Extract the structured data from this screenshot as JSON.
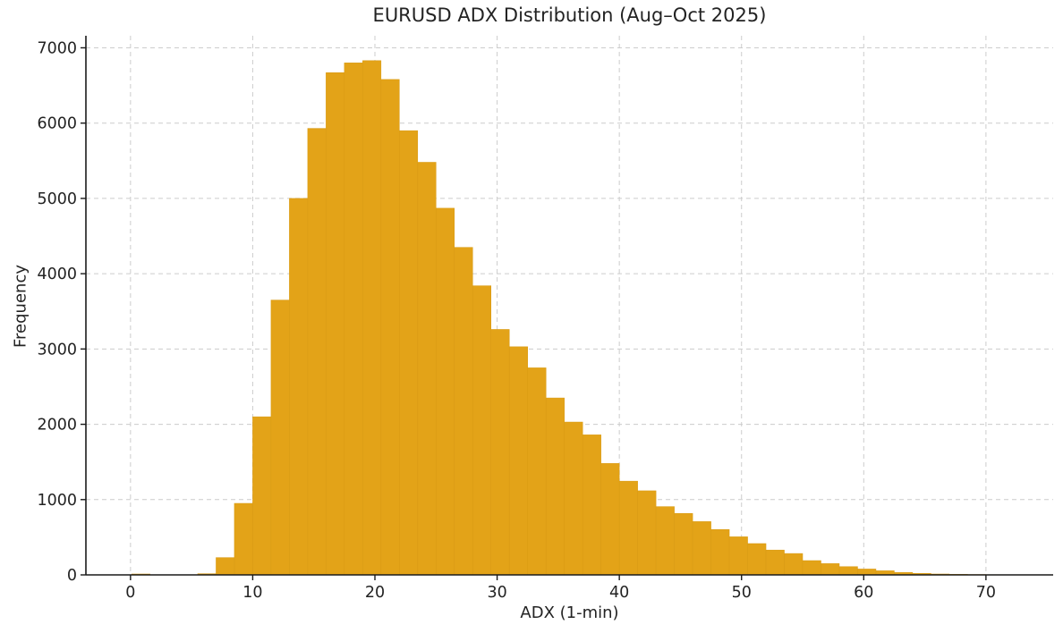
{
  "chart_data": {
    "type": "bar",
    "subtype": "histogram",
    "title": "EURUSD ADX Distribution (Aug–Oct 2025)",
    "xlabel": "ADX (1-min)",
    "ylabel": "Frequency",
    "xlim": [
      -3.65,
      75.5
    ],
    "ylim": [
      0,
      7160
    ],
    "xticks": [
      0,
      10,
      20,
      30,
      40,
      50,
      60,
      70
    ],
    "yticks": [
      0,
      1000,
      2000,
      3000,
      4000,
      5000,
      6000,
      7000
    ],
    "grid": true,
    "grid_style": "dashed",
    "grid_color": "#cccccc",
    "legend": "none",
    "bar_color": "#E3A318",
    "bar_edge_color": "#D89A14",
    "axis_color": "#1a1a1a",
    "bin_width": 1.5,
    "bins": [
      {
        "start": 0.1,
        "freq": 12
      },
      {
        "start": 5.5,
        "freq": 16
      },
      {
        "start": 7.0,
        "freq": 230
      },
      {
        "start": 8.5,
        "freq": 950
      },
      {
        "start": 10.0,
        "freq": 2100
      },
      {
        "start": 11.5,
        "freq": 3650
      },
      {
        "start": 13.0,
        "freq": 5000
      },
      {
        "start": 14.5,
        "freq": 5930
      },
      {
        "start": 16.0,
        "freq": 6670
      },
      {
        "start": 17.5,
        "freq": 6800
      },
      {
        "start": 19.0,
        "freq": 6830
      },
      {
        "start": 20.5,
        "freq": 6580
      },
      {
        "start": 22.0,
        "freq": 5900
      },
      {
        "start": 23.5,
        "freq": 5480
      },
      {
        "start": 25.0,
        "freq": 4870
      },
      {
        "start": 26.5,
        "freq": 4350
      },
      {
        "start": 28.0,
        "freq": 3840
      },
      {
        "start": 29.5,
        "freq": 3260
      },
      {
        "start": 31.0,
        "freq": 3030
      },
      {
        "start": 32.5,
        "freq": 2750
      },
      {
        "start": 34.0,
        "freq": 2350
      },
      {
        "start": 35.5,
        "freq": 2030
      },
      {
        "start": 37.0,
        "freq": 1860
      },
      {
        "start": 38.5,
        "freq": 1480
      },
      {
        "start": 40.0,
        "freq": 1245
      },
      {
        "start": 41.5,
        "freq": 1117
      },
      {
        "start": 43.0,
        "freq": 907
      },
      {
        "start": 44.5,
        "freq": 817
      },
      {
        "start": 46.0,
        "freq": 708
      },
      {
        "start": 47.5,
        "freq": 603
      },
      {
        "start": 49.0,
        "freq": 506
      },
      {
        "start": 50.5,
        "freq": 416
      },
      {
        "start": 52.0,
        "freq": 330
      },
      {
        "start": 53.5,
        "freq": 284
      },
      {
        "start": 55.0,
        "freq": 190
      },
      {
        "start": 56.5,
        "freq": 150
      },
      {
        "start": 58.0,
        "freq": 110
      },
      {
        "start": 59.5,
        "freq": 78
      },
      {
        "start": 61.0,
        "freq": 55
      },
      {
        "start": 62.5,
        "freq": 32
      },
      {
        "start": 64.0,
        "freq": 20
      },
      {
        "start": 65.5,
        "freq": 12
      },
      {
        "start": 67.0,
        "freq": 8
      },
      {
        "start": 68.5,
        "freq": 5
      },
      {
        "start": 70.0,
        "freq": 3
      }
    ]
  }
}
